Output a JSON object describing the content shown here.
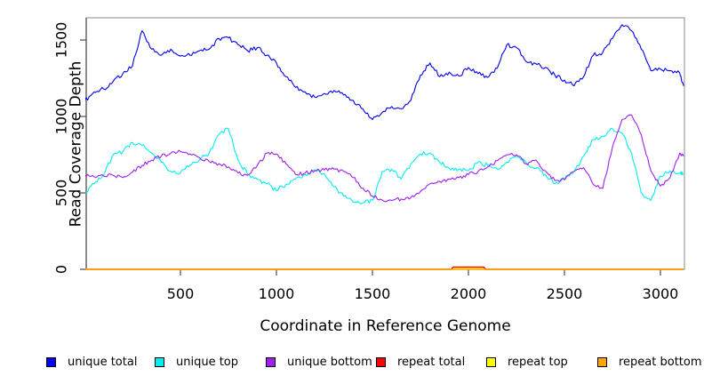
{
  "figure": {
    "background": "#ffffff",
    "axis_color": "#4d4d4d",
    "box_color": "#8a8a8a",
    "text_color": "#000000"
  },
  "chart_data": {
    "type": "line",
    "title": "",
    "xlabel": "Coordinate in Reference Genome",
    "ylabel": "Read Coverage Depth",
    "xlim": [
      0,
      3150
    ],
    "ylim": [
      0,
      1645
    ],
    "x_ticks": [
      500,
      1000,
      1500,
      2000,
      2500,
      3000
    ],
    "y_ticks": [
      0,
      500,
      1000,
      1500
    ],
    "grid": false,
    "legend_position": "bottom",
    "series": [
      {
        "name": "unique total",
        "color": "#0000ee",
        "noise": 14,
        "x": [
          0,
          50,
          100,
          150,
          200,
          250,
          300,
          350,
          400,
          450,
          500,
          550,
          600,
          650,
          700,
          750,
          800,
          850,
          900,
          950,
          1000,
          1050,
          1100,
          1150,
          1200,
          1250,
          1300,
          1350,
          1400,
          1450,
          1500,
          1550,
          1600,
          1650,
          1700,
          1750,
          1800,
          1850,
          1900,
          1950,
          2000,
          2050,
          2100,
          2150,
          2200,
          2250,
          2300,
          2350,
          2400,
          2450,
          2500,
          2550,
          2600,
          2650,
          2700,
          2750,
          2800,
          2850,
          2900,
          2950,
          3000,
          3050,
          3100,
          3120
        ],
        "values": [
          1100,
          1160,
          1180,
          1230,
          1280,
          1330,
          1560,
          1440,
          1400,
          1440,
          1395,
          1400,
          1430,
          1440,
          1510,
          1515,
          1470,
          1430,
          1450,
          1400,
          1350,
          1260,
          1190,
          1160,
          1125,
          1150,
          1170,
          1140,
          1105,
          1050,
          980,
          1025,
          1065,
          1050,
          1105,
          1270,
          1350,
          1260,
          1290,
          1265,
          1320,
          1280,
          1255,
          1315,
          1470,
          1450,
          1360,
          1345,
          1320,
          1270,
          1238,
          1200,
          1260,
          1400,
          1420,
          1510,
          1600,
          1560,
          1440,
          1300,
          1310,
          1300,
          1285,
          1200
        ]
      },
      {
        "name": "unique top",
        "color": "#00eeee",
        "noise": 14,
        "x": [
          0,
          50,
          100,
          150,
          200,
          250,
          300,
          350,
          400,
          450,
          500,
          550,
          600,
          650,
          700,
          750,
          800,
          850,
          900,
          950,
          1000,
          1050,
          1100,
          1150,
          1200,
          1250,
          1300,
          1350,
          1400,
          1450,
          1500,
          1550,
          1600,
          1650,
          1700,
          1750,
          1800,
          1850,
          1900,
          1950,
          2000,
          2050,
          2100,
          2150,
          2200,
          2250,
          2300,
          2350,
          2400,
          2450,
          2500,
          2550,
          2600,
          2650,
          2700,
          2750,
          2800,
          2850,
          2900,
          2950,
          3000,
          3050,
          3100,
          3120
        ],
        "values": [
          500,
          560,
          620,
          750,
          770,
          830,
          810,
          760,
          700,
          640,
          630,
          680,
          720,
          760,
          880,
          920,
          715,
          620,
          590,
          560,
          515,
          555,
          590,
          620,
          650,
          625,
          540,
          480,
          440,
          435,
          450,
          640,
          655,
          590,
          690,
          755,
          760,
          700,
          660,
          655,
          645,
          700,
          680,
          655,
          700,
          740,
          700,
          660,
          620,
          560,
          590,
          640,
          740,
          850,
          870,
          920,
          890,
          760,
          500,
          450,
          610,
          645,
          630,
          620
        ]
      },
      {
        "name": "unique bottom",
        "color": "#a020f0",
        "noise": 12,
        "x": [
          0,
          50,
          100,
          150,
          200,
          250,
          300,
          350,
          400,
          450,
          500,
          550,
          600,
          650,
          700,
          750,
          800,
          850,
          900,
          950,
          1000,
          1050,
          1100,
          1150,
          1200,
          1250,
          1300,
          1350,
          1400,
          1450,
          1500,
          1550,
          1600,
          1650,
          1700,
          1750,
          1800,
          1850,
          1900,
          1950,
          2000,
          2050,
          2100,
          2150,
          2200,
          2250,
          2300,
          2350,
          2400,
          2450,
          2500,
          2550,
          2600,
          2650,
          2700,
          2750,
          2800,
          2850,
          2900,
          2950,
          3000,
          3050,
          3100,
          3120
        ],
        "values": [
          620,
          605,
          610,
          615,
          600,
          635,
          680,
          715,
          740,
          760,
          770,
          755,
          730,
          705,
          690,
          670,
          630,
          615,
          680,
          760,
          755,
          690,
          620,
          630,
          645,
          650,
          655,
          640,
          600,
          530,
          480,
          455,
          450,
          460,
          470,
          510,
          560,
          575,
          590,
          600,
          620,
          640,
          670,
          710,
          750,
          750,
          690,
          715,
          645,
          580,
          585,
          640,
          665,
          555,
          530,
          800,
          980,
          1010,
          880,
          645,
          545,
          600,
          760,
          740
        ]
      },
      {
        "name": "repeat total",
        "color": "#ff0000",
        "noise": 0,
        "x": [
          0,
          1910,
          1920,
          2080,
          2090,
          3120
        ],
        "values": [
          0,
          0,
          15,
          15,
          0,
          0
        ]
      },
      {
        "name": "repeat top",
        "color": "#ffff00",
        "noise": 0,
        "x": [
          0,
          1915,
          1925,
          2075,
          2085,
          3120
        ],
        "values": [
          0,
          0,
          9,
          9,
          0,
          0
        ]
      },
      {
        "name": "repeat bottom",
        "color": "#ffa500",
        "noise": 0,
        "x": [
          0,
          3120
        ],
        "values": [
          0,
          0
        ]
      }
    ]
  },
  "legend": {
    "item_lefts": [
      52,
      174,
      299,
      423,
      547,
      672
    ]
  }
}
